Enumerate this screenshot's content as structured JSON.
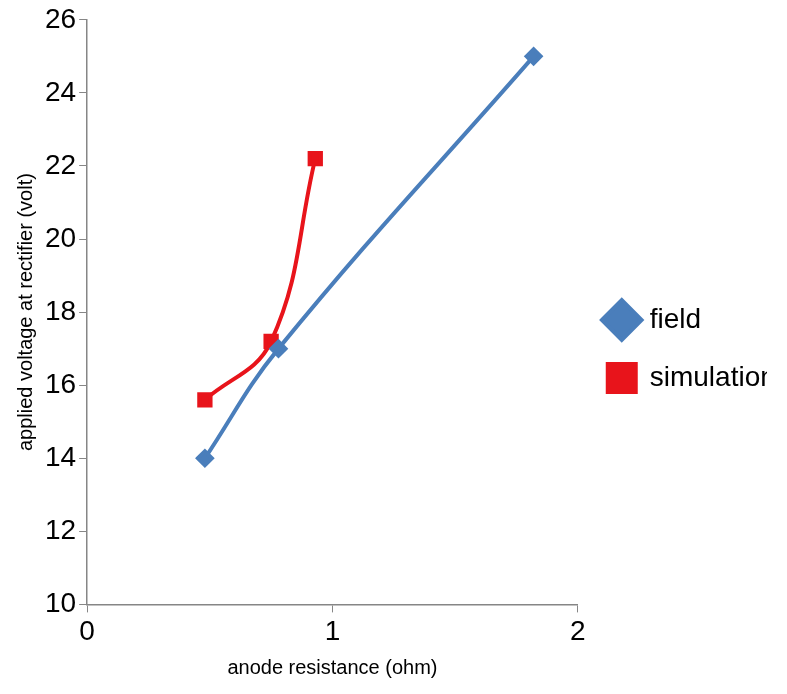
{
  "chart_data": {
    "type": "line",
    "x_label": "anode resistance (ohm)",
    "y_label": "applied voltage at rectifier (volt)",
    "xlim": [
      0,
      2
    ],
    "xticks": [
      0,
      1,
      2
    ],
    "ylim": [
      10,
      26
    ],
    "yticks": [
      10,
      12,
      14,
      16,
      18,
      20,
      22,
      24,
      26
    ],
    "grid": false,
    "legend": "right",
    "series": [
      {
        "name": "field",
        "color": "#4a7ebb",
        "marker": "diamond",
        "line_style": "smooth",
        "x": [
          0.48,
          0.78,
          1.82
        ],
        "values": [
          14,
          17,
          25
        ]
      },
      {
        "name": "simulation",
        "color": "#e8141b",
        "marker": "square",
        "line_style": "smooth",
        "x": [
          0.48,
          0.75,
          0.93
        ],
        "values": [
          15.6,
          17.2,
          22.2
        ]
      }
    ]
  }
}
